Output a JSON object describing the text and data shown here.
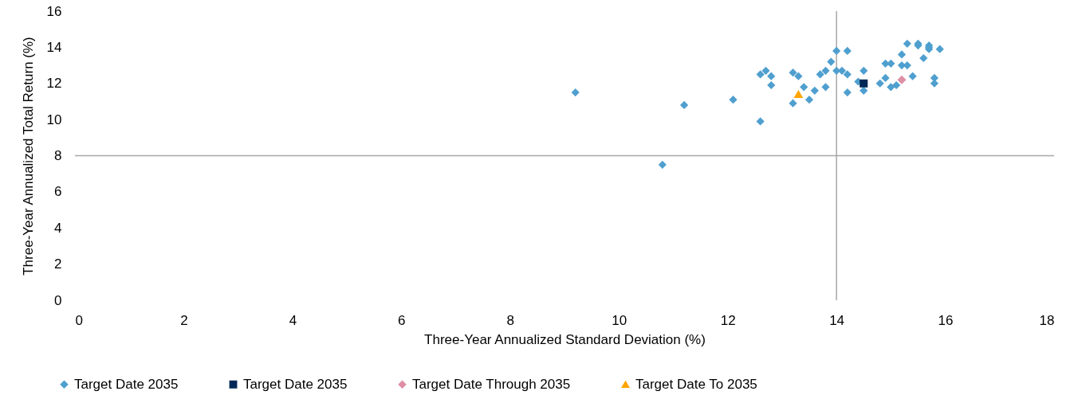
{
  "chart_data": {
    "type": "scatter",
    "xlabel": "Three-Year Annualized Standard Deviation (%)",
    "ylabel": "Three-Year Annualized Total Return (%)",
    "xlim": [
      0,
      18
    ],
    "xticks": [
      0,
      2,
      4,
      6,
      8,
      10,
      12,
      14,
      16,
      18
    ],
    "ylim": [
      0,
      16
    ],
    "yticks": [
      0,
      2,
      4,
      6,
      8,
      10,
      12,
      14,
      16
    ],
    "grid": false,
    "legend": "bottom",
    "ref_lines": [
      {
        "axis": "y",
        "value": 8,
        "color": "#a6a6a6"
      },
      {
        "axis": "x",
        "value": 14,
        "color": "#a6a6a6"
      }
    ],
    "series": [
      {
        "name": "Target Date 2035",
        "color": "#4f9fcf",
        "marker": "diamond",
        "x": [
          9.2,
          11.2,
          12.1,
          12.6,
          10.8,
          12.6,
          12.7,
          12.8,
          12.8,
          13.2,
          13.3,
          13.4,
          13.5,
          13.2,
          13.6,
          13.8,
          13.7,
          13.8,
          13.9,
          14.0,
          14.2,
          14.0,
          14.1,
          14.2,
          14.2,
          14.4,
          14.5,
          14.5,
          14.9,
          15.0,
          14.9,
          14.8,
          15.0,
          15.1,
          15.3,
          15.2,
          15.2,
          15.3,
          15.4,
          15.5,
          15.5,
          15.6,
          15.7,
          15.7,
          15.7,
          15.9,
          15.8,
          15.8
        ],
        "values": [
          11.5,
          10.8,
          11.1,
          9.9,
          7.5,
          12.5,
          12.7,
          12.4,
          11.9,
          12.6,
          12.4,
          11.8,
          11.1,
          10.9,
          11.6,
          11.8,
          12.5,
          12.7,
          13.2,
          13.8,
          13.8,
          12.7,
          12.7,
          12.5,
          11.5,
          12.1,
          12.7,
          11.6,
          13.1,
          13.1,
          12.3,
          12.0,
          11.8,
          11.9,
          14.2,
          13.6,
          13.0,
          13.0,
          12.4,
          14.2,
          14.1,
          13.4,
          14.1,
          13.9,
          14.0,
          13.9,
          12.3,
          12.0
        ]
      },
      {
        "name": "Target Date 2035",
        "color": "#002856",
        "marker": "square",
        "x": [
          14.5
        ],
        "values": [
          12.0
        ]
      },
      {
        "name": "Target Date Through 2035",
        "color": "#de8ea5",
        "marker": "diamond",
        "x": [
          15.2
        ],
        "values": [
          12.2
        ]
      },
      {
        "name": "Target Date To 2035",
        "color": "#ffa500",
        "marker": "triangle",
        "x": [
          13.3
        ],
        "values": [
          11.4
        ]
      }
    ]
  }
}
